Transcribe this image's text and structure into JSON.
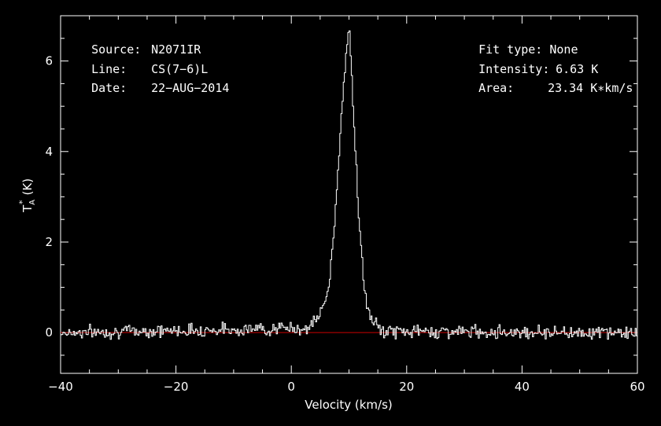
{
  "chart_data": {
    "type": "line",
    "xlabel": "Velocity (km/s)",
    "ylabel_main": "T",
    "ylabel_sub": "A",
    "ylabel_sup": "*",
    "ylabel_unit": "(K)",
    "xlim": [
      -40,
      60
    ],
    "ylim": [
      -0.9,
      7.0
    ],
    "xticks": [
      -40,
      -20,
      0,
      20,
      40,
      60
    ],
    "yticks": [
      0,
      2,
      4,
      6
    ],
    "baseline": 0,
    "colors": {
      "background": "#000000",
      "spectrum": "#ffffff",
      "baseline": "#cc0000",
      "axes": "#ffffff"
    },
    "series": [
      {
        "x": [
          -40,
          3,
          4,
          5,
          6,
          6.5,
          7,
          7.5,
          8,
          8.5,
          9,
          9.5,
          10,
          10.5,
          11,
          11.5,
          12,
          12.5,
          13,
          14,
          15,
          16,
          60
        ],
        "y": [
          0,
          0.1,
          0.25,
          0.45,
          0.75,
          1.1,
          1.8,
          2.6,
          3.6,
          4.6,
          5.6,
          6.3,
          6.63,
          5.3,
          4.1,
          2.8,
          1.9,
          1.1,
          0.55,
          0.25,
          0.1,
          0.03,
          0
        ]
      }
    ]
  },
  "info": {
    "source_label": "Source:",
    "source_value": "N2071IR",
    "line_label": "Line:",
    "line_value": "CS(7−6)L",
    "date_label": "Date:",
    "date_value": "22−AUG−2014",
    "fit_label": "Fit type:",
    "fit_value": "None",
    "intensity_label": "Intensity:",
    "intensity_value": "6.63 K",
    "area_label": "Area:",
    "area_value": "23.34 K∗km/s"
  }
}
